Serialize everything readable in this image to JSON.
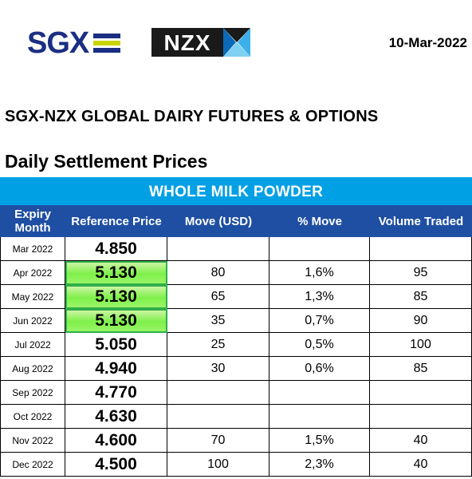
{
  "header": {
    "sgx_logo_text": "SGX",
    "nzx_logo_text": "NZX",
    "date": "10-Mar-2022",
    "title": "SGX-NZX GLOBAL DAIRY FUTURES & OPTIONS",
    "section": "Daily Settlement Prices"
  },
  "table": {
    "product": "WHOLE MILK POWDER",
    "columns": {
      "expiry": "Expiry Month",
      "reference": "Reference Price",
      "move": "Move (USD)",
      "pct": "% Move",
      "volume": "Volume Traded"
    },
    "rows": [
      {
        "month": "Mar 2022",
        "ref": "4.850",
        "move": "",
        "pct": "",
        "volume": "",
        "highlight": false
      },
      {
        "month": "Apr 2022",
        "ref": "5.130",
        "move": "80",
        "pct": "1,6%",
        "volume": "95",
        "highlight": true
      },
      {
        "month": "May 2022",
        "ref": "5.130",
        "move": "65",
        "pct": "1,3%",
        "volume": "85",
        "highlight": true
      },
      {
        "month": "Jun 2022",
        "ref": "5.130",
        "move": "35",
        "pct": "0,7%",
        "volume": "90",
        "highlight": true
      },
      {
        "month": "Jul 2022",
        "ref": "5.050",
        "move": "25",
        "pct": "0,5%",
        "volume": "100",
        "highlight": false
      },
      {
        "month": "Aug 2022",
        "ref": "4.940",
        "move": "30",
        "pct": "0,6%",
        "volume": "85",
        "highlight": false
      },
      {
        "month": "Sep 2022",
        "ref": "4.770",
        "move": "",
        "pct": "",
        "volume": "",
        "highlight": false
      },
      {
        "month": "Oct 2022",
        "ref": "4.630",
        "move": "",
        "pct": "",
        "volume": "",
        "highlight": false
      },
      {
        "month": "Nov 2022",
        "ref": "4.600",
        "move": "70",
        "pct": "1,5%",
        "volume": "40",
        "highlight": false
      },
      {
        "month": "Dec 2022",
        "ref": "4.500",
        "move": "100",
        "pct": "2,3%",
        "volume": "40",
        "highlight": false
      }
    ]
  },
  "colors": {
    "sgx_blue": "#1b2e82",
    "sgx_green": "#c8d400",
    "product_bar": "#00a0e4",
    "header_bar": "#1f4fa3",
    "highlight_green": "#7ef04a"
  }
}
